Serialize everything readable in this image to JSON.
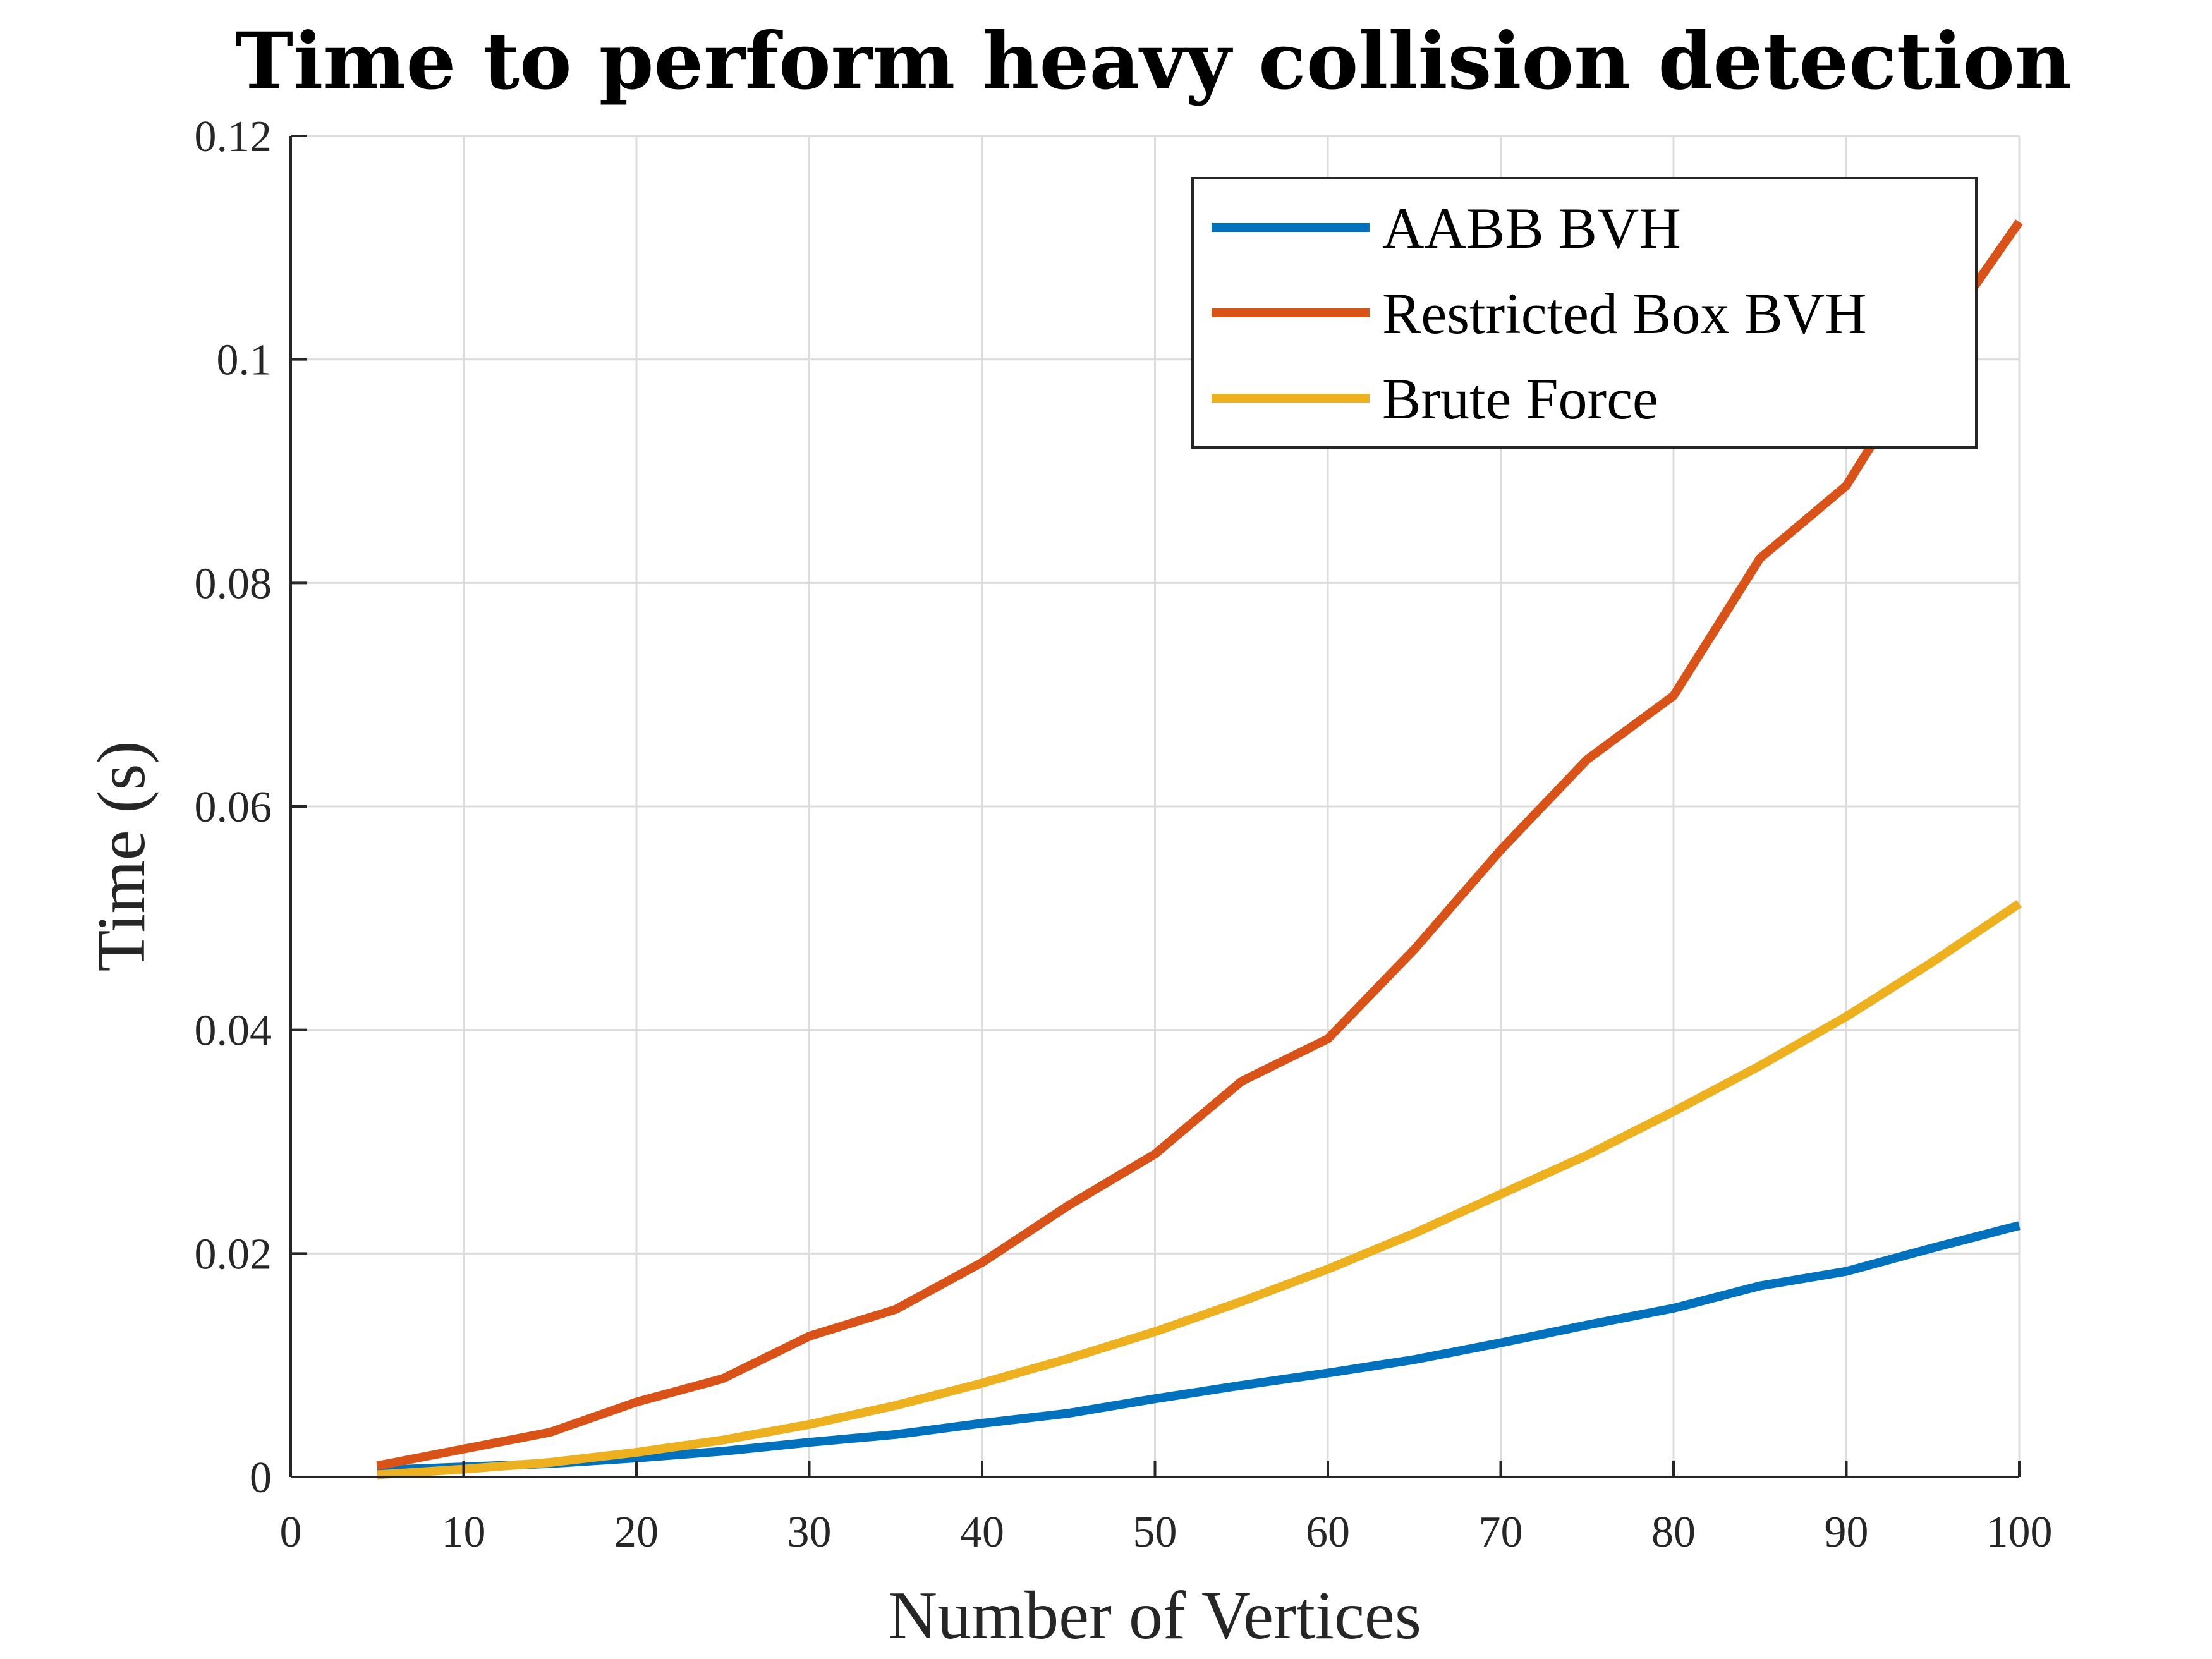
{
  "chart_data": {
    "type": "line",
    "title": "Time to perform heavy collision detection",
    "xlabel": "Number of Vertices",
    "ylabel": "Time (s)",
    "xlim": [
      0,
      100
    ],
    "ylim": [
      0,
      0.12
    ],
    "xticks": [
      0,
      10,
      20,
      30,
      40,
      50,
      60,
      70,
      80,
      90,
      100
    ],
    "yticks": [
      0,
      0.02,
      0.04,
      0.06,
      0.08,
      0.1,
      0.12
    ],
    "xtick_labels": [
      "0",
      "10",
      "20",
      "30",
      "40",
      "50",
      "60",
      "70",
      "80",
      "90",
      "100"
    ],
    "ytick_labels": [
      "0",
      "0.02",
      "0.04",
      "0.06",
      "0.08",
      "0.1",
      "0.12"
    ],
    "grid": true,
    "legend_position": "top-right",
    "x": [
      5,
      10,
      15,
      20,
      25,
      30,
      35,
      40,
      45,
      50,
      55,
      60,
      65,
      70,
      75,
      80,
      85,
      90,
      95,
      100
    ],
    "series": [
      {
        "name": "AABB BVH",
        "color": "#0072bd",
        "values": [
          0.0006,
          0.0009,
          0.0012,
          0.0017,
          0.0023,
          0.0031,
          0.0038,
          0.0048,
          0.0057,
          0.007,
          0.0082,
          0.0093,
          0.0105,
          0.012,
          0.0136,
          0.0151,
          0.0171,
          0.0184,
          0.0205,
          0.0225
        ]
      },
      {
        "name": "Restricted Box BVH",
        "color": "#d95319",
        "values": [
          0.001,
          0.0025,
          0.004,
          0.0067,
          0.0088,
          0.0126,
          0.015,
          0.0192,
          0.0243,
          0.0289,
          0.0354,
          0.0392,
          0.0472,
          0.0561,
          0.0642,
          0.0699,
          0.0822,
          0.0887,
          0.1012,
          0.1123
        ]
      },
      {
        "name": "Brute Force",
        "color": "#edb120",
        "values": [
          0.0002,
          0.0007,
          0.0013,
          0.0022,
          0.0033,
          0.0047,
          0.0064,
          0.0084,
          0.0106,
          0.013,
          0.0157,
          0.0186,
          0.0218,
          0.0253,
          0.0288,
          0.0327,
          0.0368,
          0.0412,
          0.0461,
          0.0513
        ]
      }
    ]
  }
}
